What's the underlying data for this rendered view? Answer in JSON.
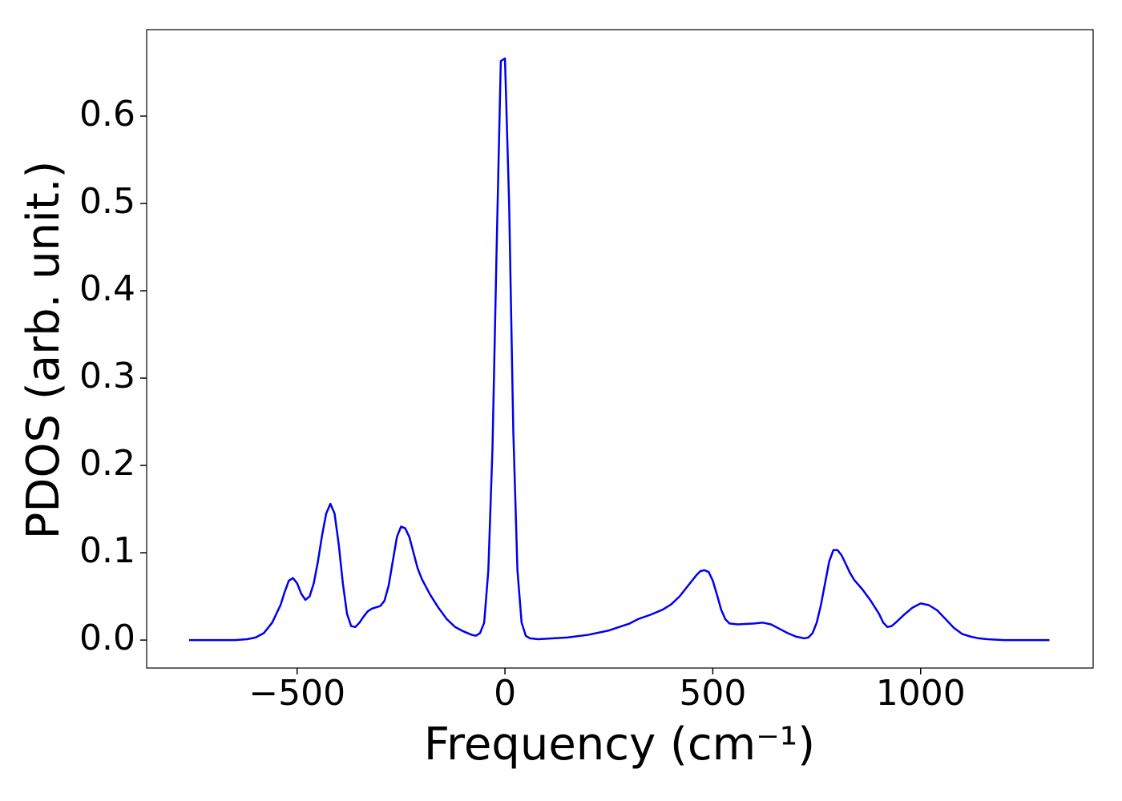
{
  "chart_data": {
    "type": "line",
    "xlabel": "Frequency (cm⁻¹)",
    "ylabel": "PDOS (arb. unit.)",
    "xlim": [
      -862,
      1415
    ],
    "ylim": [
      -0.032,
      0.699
    ],
    "xticks": [
      {
        "value": -500,
        "label": "−500"
      },
      0,
      500,
      1000
    ],
    "yticks": [
      {
        "value": 0,
        "label": "0.0"
      },
      0.1,
      0.2,
      0.3,
      0.4,
      0.5,
      0.6
    ],
    "grid": false,
    "series": [
      {
        "name": "PDOS",
        "color": "#0000ee",
        "x": [
          -760,
          -700,
          -650,
          -620,
          -600,
          -580,
          -560,
          -540,
          -530,
          -520,
          -510,
          -500,
          -490,
          -480,
          -470,
          -460,
          -450,
          -440,
          -430,
          -420,
          -410,
          -400,
          -390,
          -380,
          -370,
          -360,
          -350,
          -340,
          -330,
          -320,
          -300,
          -290,
          -280,
          -270,
          -260,
          -250,
          -240,
          -230,
          -220,
          -210,
          -200,
          -180,
          -160,
          -140,
          -120,
          -100,
          -80,
          -70,
          -60,
          -50,
          -40,
          -30,
          -20,
          -10,
          0,
          10,
          20,
          30,
          40,
          50,
          60,
          80,
          150,
          200,
          250,
          300,
          320,
          350,
          380,
          400,
          420,
          440,
          460,
          470,
          480,
          490,
          500,
          510,
          520,
          530,
          540,
          560,
          600,
          620,
          640,
          660,
          680,
          700,
          720,
          730,
          740,
          750,
          760,
          770,
          780,
          790,
          800,
          810,
          820,
          830,
          840,
          860,
          880,
          900,
          910,
          920,
          930,
          940,
          960,
          980,
          1000,
          1020,
          1040,
          1060,
          1080,
          1100,
          1120,
          1140,
          1160,
          1200,
          1250,
          1310
        ],
        "values": [
          0,
          0,
          0,
          0.001,
          0.003,
          0.008,
          0.02,
          0.04,
          0.055,
          0.068,
          0.071,
          0.065,
          0.053,
          0.046,
          0.05,
          0.065,
          0.09,
          0.12,
          0.145,
          0.156,
          0.145,
          0.11,
          0.065,
          0.03,
          0.016,
          0.015,
          0.02,
          0.027,
          0.033,
          0.036,
          0.039,
          0.045,
          0.062,
          0.09,
          0.118,
          0.13,
          0.128,
          0.118,
          0.1,
          0.082,
          0.07,
          0.052,
          0.037,
          0.024,
          0.015,
          0.01,
          0.006,
          0.005,
          0.008,
          0.02,
          0.08,
          0.22,
          0.45,
          0.663,
          0.666,
          0.5,
          0.24,
          0.08,
          0.02,
          0.005,
          0.002,
          0.001,
          0.003,
          0.006,
          0.011,
          0.019,
          0.024,
          0.029,
          0.035,
          0.041,
          0.05,
          0.062,
          0.074,
          0.079,
          0.08,
          0.078,
          0.068,
          0.052,
          0.035,
          0.024,
          0.019,
          0.018,
          0.019,
          0.02,
          0.018,
          0.013,
          0.008,
          0.004,
          0.002,
          0.003,
          0.008,
          0.02,
          0.04,
          0.065,
          0.09,
          0.103,
          0.103,
          0.097,
          0.087,
          0.077,
          0.069,
          0.058,
          0.045,
          0.03,
          0.02,
          0.015,
          0.016,
          0.02,
          0.029,
          0.037,
          0.042,
          0.04,
          0.034,
          0.024,
          0.014,
          0.007,
          0.004,
          0.002,
          0.001,
          0,
          0,
          0
        ]
      }
    ]
  }
}
